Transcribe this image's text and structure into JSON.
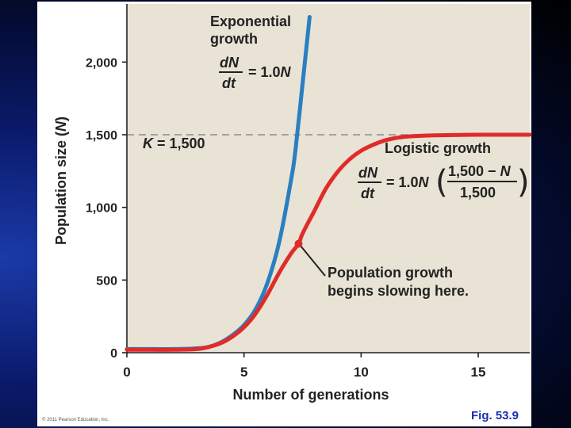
{
  "chart_data": {
    "type": "line",
    "xlabel": "Number of generations",
    "ylabel_main": "Population size (",
    "ylabel_var": "N",
    "ylabel_end": ")",
    "xlim": [
      0,
      17.2
    ],
    "ylim": [
      0,
      2400
    ],
    "x_ticks": [
      0,
      5,
      10,
      15
    ],
    "x_tick_labels": [
      "0",
      "5",
      "10",
      "15"
    ],
    "y_ticks": [
      0,
      500,
      1000,
      1500,
      2000
    ],
    "y_tick_labels": [
      "0",
      "500",
      "1,000",
      "1,500",
      "2,000"
    ],
    "carrying_capacity": {
      "value": 1500,
      "label_var": "K",
      "label_rest": " = 1,500"
    },
    "series": [
      {
        "name": "Exponential growth",
        "color": "#2a7fc1",
        "x": [
          0,
          1,
          2,
          3,
          3.5,
          4,
          4.5,
          5,
          5.5,
          6,
          6.5,
          7,
          7.2,
          7.5,
          7.8
        ],
        "y": [
          25,
          25,
          25,
          30,
          40,
          70,
          120,
          190,
          300,
          480,
          760,
          1180,
          1400,
          1850,
          2310
        ]
      },
      {
        "name": "Logistic growth",
        "color": "#e02b2b",
        "x": [
          0,
          1,
          2,
          3,
          3.5,
          4,
          4.5,
          5,
          5.5,
          6,
          6.5,
          7,
          7.33,
          7.5,
          8,
          8.5,
          9,
          9.5,
          10,
          10.5,
          11,
          11.5,
          12,
          13,
          14,
          15,
          16,
          17.2
        ],
        "y": [
          20,
          20,
          20,
          25,
          40,
          65,
          110,
          175,
          270,
          400,
          550,
          680,
          750,
          820,
          975,
          1130,
          1245,
          1330,
          1390,
          1430,
          1460,
          1478,
          1488,
          1495,
          1498,
          1500,
          1500,
          1500
        ]
      }
    ],
    "highlight_point": {
      "x": 7.33,
      "y": 750,
      "color": "#e02b2b"
    },
    "annotations": {
      "exp_title_1": "Exponential",
      "exp_title_2": "growth",
      "exp_eq_num": "dN",
      "exp_eq_den": "dt",
      "exp_eq_rhs": "= 1.0",
      "exp_eq_var": "N",
      "log_title": "Logistic growth",
      "log_eq_num": "dN",
      "log_eq_den": "dt",
      "log_eq_rhs": "= 1.0",
      "log_eq_var": "N",
      "log_frac_num": "1,500 − ",
      "log_frac_num_var": "N",
      "log_frac_den": "1,500",
      "slow_1": "Population growth",
      "slow_2": "begins slowing here."
    },
    "colors": {
      "plot_background": "#e8e3d4",
      "asymptote": "#8c8c8c"
    }
  },
  "copyright": "© 2011 Pearson Education, Inc.",
  "fig_label": "Fig. 53.9"
}
